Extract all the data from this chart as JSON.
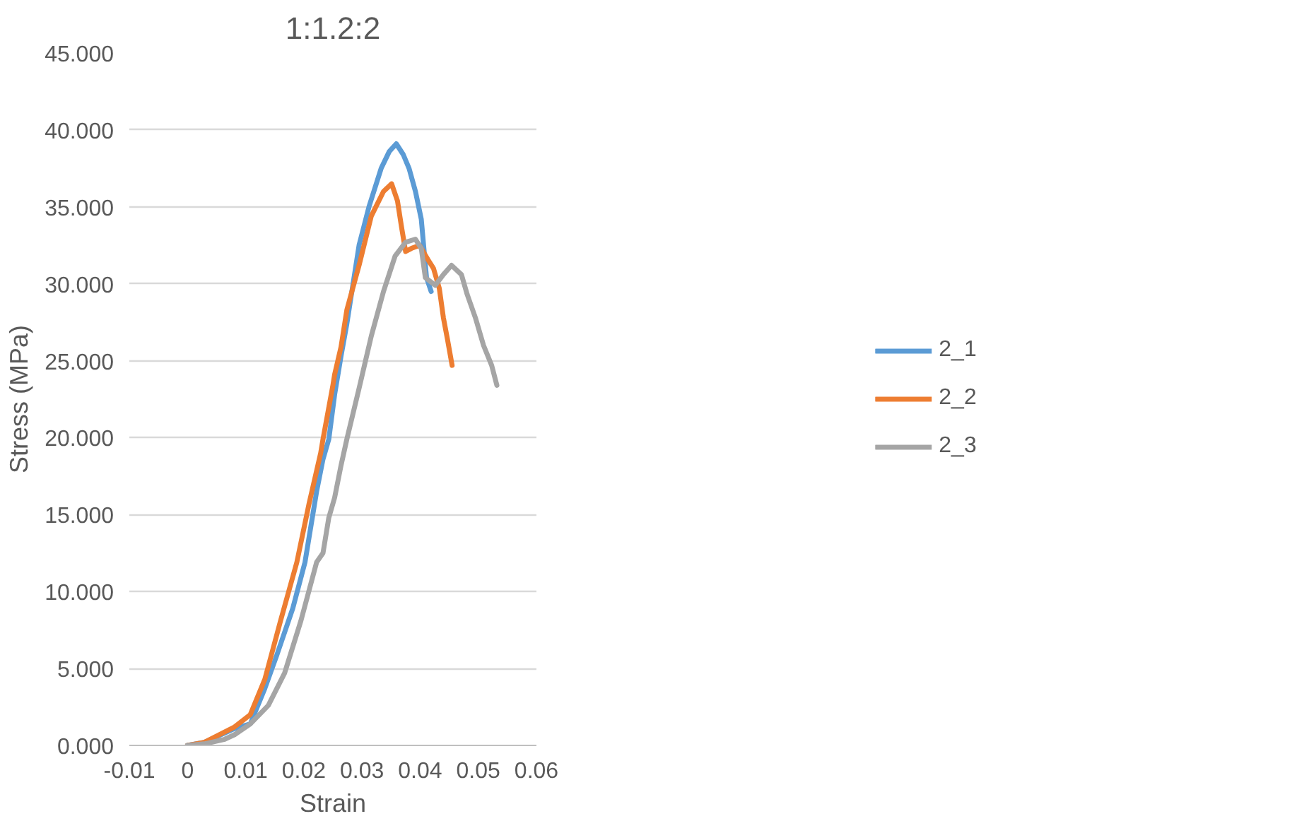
{
  "chart_data": {
    "type": "line",
    "title": "1:1.2:2",
    "xlabel": "Strain",
    "ylabel": "Stress (MPa)",
    "xlim": [
      -0.01,
      0.06
    ],
    "xticks": [
      -0.01,
      0,
      0.01,
      0.02,
      0.03,
      0.04,
      0.05,
      0.06
    ],
    "ylim": [
      0,
      45
    ],
    "yticks": [
      {
        "value": 0,
        "label": "0.000"
      },
      {
        "value": 5,
        "label": "5.000"
      },
      {
        "value": 10,
        "label": "10.000"
      },
      {
        "value": 15,
        "label": "15.000"
      },
      {
        "value": 20,
        "label": "20.000"
      },
      {
        "value": 25,
        "label": "25.000"
      },
      {
        "value": 30,
        "label": "30.000"
      },
      {
        "value": 35,
        "label": "35.000"
      },
      {
        "value": 40,
        "label": "40.000"
      },
      {
        "value": 45,
        "label": "45.000"
      }
    ],
    "grid": "y",
    "legend": "right",
    "marker": "none",
    "line_style": "solid",
    "series": [
      {
        "name": "2_1",
        "color": "#5b9bd5",
        "x": [
          0,
          0.0029,
          0.0081,
          0.0108,
          0.0133,
          0.0153,
          0.0181,
          0.0202,
          0.0222,
          0.0233,
          0.0243,
          0.0253,
          0.0264,
          0.0274,
          0.0295,
          0.0312,
          0.0333,
          0.0347,
          0.0359,
          0.0371,
          0.0381,
          0.0392,
          0.0402,
          0.0406,
          0.0411,
          0.0419
        ],
        "values": [
          0,
          0.2,
          1.1,
          1.4,
          3.7,
          5.8,
          8.9,
          11.9,
          16.5,
          18.6,
          19.9,
          22.8,
          25.3,
          27.4,
          32.5,
          35.0,
          37.5,
          38.6,
          39.1,
          38.4,
          37.5,
          36.0,
          34.2,
          32.5,
          30.4,
          29.5
        ]
      },
      {
        "name": "2_2",
        "color": "#ed7d31",
        "x": [
          0,
          0.0029,
          0.0081,
          0.0108,
          0.0133,
          0.016,
          0.0188,
          0.0209,
          0.0229,
          0.0233,
          0.025,
          0.0253,
          0.0264,
          0.0274,
          0.0295,
          0.0316,
          0.0337,
          0.0351,
          0.0361,
          0.0368,
          0.0375,
          0.0385,
          0.0399,
          0.0413,
          0.0423,
          0.0433,
          0.044,
          0.0447,
          0.0455
        ],
        "values": [
          0,
          0.2,
          1.2,
          2.0,
          4.3,
          8.1,
          11.9,
          15.7,
          19.0,
          19.9,
          23.4,
          24.1,
          25.9,
          28.3,
          31.2,
          34.4,
          36.0,
          36.5,
          35.4,
          33.7,
          32.1,
          32.3,
          32.5,
          31.6,
          31.0,
          29.7,
          27.8,
          26.4,
          24.7
        ]
      },
      {
        "name": "2_3",
        "color": "#a5a5a5",
        "x": [
          0,
          0.0029,
          0.0064,
          0.0081,
          0.0108,
          0.0139,
          0.0167,
          0.0195,
          0.0222,
          0.0233,
          0.0243,
          0.0253,
          0.0264,
          0.0274,
          0.0295,
          0.0316,
          0.0337,
          0.0357,
          0.0375,
          0.0392,
          0.0402,
          0.0409,
          0.0426,
          0.044,
          0.0454,
          0.0471,
          0.0481,
          0.0495,
          0.0509,
          0.0523,
          0.0532
        ],
        "values": [
          0,
          0.1,
          0.4,
          0.7,
          1.4,
          2.6,
          4.7,
          8.1,
          11.9,
          12.5,
          14.8,
          16.1,
          18.2,
          19.9,
          23.2,
          26.6,
          29.5,
          31.8,
          32.7,
          32.9,
          32.3,
          30.4,
          29.9,
          30.6,
          31.2,
          30.6,
          29.3,
          27.8,
          26.0,
          24.7,
          23.4
        ]
      }
    ]
  }
}
